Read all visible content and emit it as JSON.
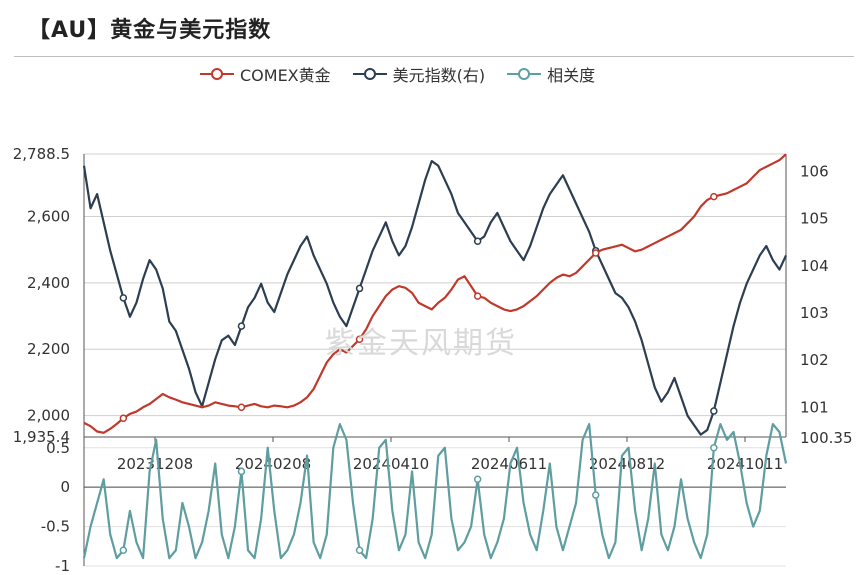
{
  "title": "【AU】黄金与美元指数",
  "watermark": "紫金天风期货",
  "legend": [
    {
      "label": "COMEX黄金",
      "color": "#c0392b"
    },
    {
      "label": "美元指数(右)",
      "color": "#2c3e50"
    },
    {
      "label": "相关度",
      "color": "#5f9ea0"
    }
  ],
  "chart_data": [
    {
      "type": "line",
      "x_ticks": [
        "20231208",
        "20240208",
        "20240410",
        "20240611",
        "20240812",
        "20241011"
      ],
      "y_left": {
        "ticks": [
          "2,788.5",
          "2,600",
          "2,400",
          "2,200",
          "2,000",
          "1,935.4"
        ],
        "range": [
          1935.4,
          2788.5
        ]
      },
      "y_right": {
        "ticks": [
          "106",
          "105",
          "104",
          "103",
          "102",
          "101",
          "100.35"
        ],
        "range": [
          100.35,
          106.35
        ]
      },
      "series": [
        {
          "name": "COMEX黄金",
          "axis": "left",
          "color": "#c0392b",
          "values": [
            1978,
            1968,
            1952,
            1948,
            1960,
            1975,
            1992,
            2005,
            2012,
            2025,
            2035,
            2050,
            2065,
            2055,
            2048,
            2040,
            2035,
            2030,
            2025,
            2030,
            2040,
            2035,
            2030,
            2028,
            2025,
            2030,
            2035,
            2028,
            2025,
            2030,
            2028,
            2025,
            2030,
            2040,
            2055,
            2080,
            2120,
            2160,
            2185,
            2200,
            2190,
            2210,
            2230,
            2260,
            2300,
            2330,
            2360,
            2380,
            2390,
            2385,
            2370,
            2340,
            2330,
            2320,
            2340,
            2355,
            2380,
            2410,
            2420,
            2390,
            2360,
            2355,
            2340,
            2330,
            2320,
            2315,
            2320,
            2330,
            2345,
            2360,
            2380,
            2400,
            2415,
            2425,
            2420,
            2430,
            2450,
            2470,
            2490,
            2500,
            2505,
            2510,
            2515,
            2505,
            2495,
            2500,
            2510,
            2520,
            2530,
            2540,
            2550,
            2560,
            2580,
            2600,
            2630,
            2650,
            2660,
            2665,
            2670,
            2680,
            2690,
            2700,
            2720,
            2740,
            2750,
            2760,
            2770,
            2788
          ]
        },
        {
          "name": "美元指数(右)",
          "axis": "right",
          "color": "#2c3e50",
          "values": [
            106.1,
            105.2,
            105.5,
            104.9,
            104.3,
            103.8,
            103.3,
            102.9,
            103.2,
            103.7,
            104.1,
            103.9,
            103.5,
            102.8,
            102.6,
            102.2,
            101.8,
            101.3,
            101.0,
            101.5,
            102.0,
            102.4,
            102.5,
            102.3,
            102.7,
            103.1,
            103.3,
            103.6,
            103.2,
            103.0,
            103.4,
            103.8,
            104.1,
            104.4,
            104.6,
            104.2,
            103.9,
            103.6,
            103.2,
            102.9,
            102.7,
            103.1,
            103.5,
            103.9,
            104.3,
            104.6,
            104.9,
            104.5,
            104.2,
            104.4,
            104.8,
            105.3,
            105.8,
            106.2,
            106.1,
            105.8,
            105.5,
            105.1,
            104.9,
            104.7,
            104.5,
            104.6,
            104.9,
            105.1,
            104.8,
            104.5,
            104.3,
            104.1,
            104.4,
            104.8,
            105.2,
            105.5,
            105.7,
            105.9,
            105.6,
            105.3,
            105.0,
            104.7,
            104.3,
            104.0,
            103.7,
            103.4,
            103.3,
            103.1,
            102.8,
            102.4,
            101.9,
            101.4,
            101.1,
            101.3,
            101.6,
            101.2,
            100.8,
            100.6,
            100.4,
            100.5,
            100.9,
            101.5,
            102.1,
            102.7,
            103.2,
            103.6,
            103.9,
            104.2,
            104.4,
            104.1,
            103.9,
            104.2
          ]
        },
        {
          "name": "相关度",
          "axis": "corr",
          "color": "#5f9ea0",
          "values": [
            -0.9,
            -0.5,
            -0.2,
            0.1,
            -0.6,
            -0.9,
            -0.8,
            -0.3,
            -0.7,
            -0.9,
            0.2,
            0.6,
            -0.4,
            -0.9,
            -0.8,
            -0.2,
            -0.5,
            -0.9,
            -0.7,
            -0.3,
            0.3,
            -0.6,
            -0.9,
            -0.5,
            0.2,
            -0.8,
            -0.9,
            -0.4,
            0.5,
            -0.3,
            -0.9,
            -0.8,
            -0.6,
            -0.2,
            0.4,
            -0.7,
            -0.9,
            -0.6,
            0.5,
            0.8,
            0.6,
            -0.2,
            -0.8,
            -0.9,
            -0.4,
            0.5,
            0.6,
            -0.3,
            -0.8,
            -0.6,
            0.2,
            -0.7,
            -0.9,
            -0.6,
            0.4,
            0.5,
            -0.4,
            -0.8,
            -0.7,
            -0.5,
            0.1,
            -0.6,
            -0.9,
            -0.7,
            -0.4,
            0.3,
            0.5,
            -0.2,
            -0.6,
            -0.8,
            -0.3,
            0.3,
            -0.5,
            -0.8,
            -0.5,
            -0.2,
            0.6,
            0.8,
            -0.1,
            -0.6,
            -0.9,
            -0.7,
            0.4,
            0.5,
            -0.3,
            -0.8,
            -0.4,
            0.3,
            -0.6,
            -0.8,
            -0.5,
            0.1,
            -0.4,
            -0.7,
            -0.9,
            -0.6,
            0.5,
            0.8,
            0.6,
            0.7,
            0.3,
            -0.2,
            -0.5,
            -0.3,
            0.4,
            0.8,
            0.7,
            0.3
          ]
        }
      ]
    },
    {
      "type": "line",
      "y_ticks": [
        "0.5",
        "0",
        "-0.5",
        "-1"
      ],
      "y_range": [
        -1,
        0.7
      ]
    }
  ]
}
